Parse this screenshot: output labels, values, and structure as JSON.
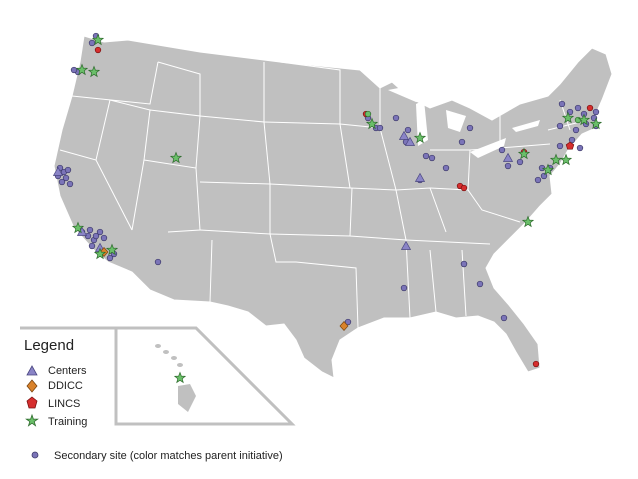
{
  "legend": {
    "title": "Legend",
    "items": [
      {
        "label": "Centers",
        "color": "#8a84c6",
        "icon": "triangle-icon"
      },
      {
        "label": "DDICC",
        "color": "#d9822b",
        "icon": "diamond-icon"
      },
      {
        "label": "LINCS",
        "color": "#d62e2e",
        "icon": "pentagon-icon"
      },
      {
        "label": "Training",
        "color": "#6abf69",
        "icon": "star-icon"
      }
    ],
    "secondary_note": "Secondary site (color matches parent initiative)",
    "secondary_icon": "circle-icon"
  },
  "colors": {
    "land": "#c0c0c0",
    "state_border": "#ffffff",
    "secondary_fill": "#7b74b8",
    "secondary_stroke": "#3d3a6b",
    "inset_frame": "#c0c0c0"
  }
}
